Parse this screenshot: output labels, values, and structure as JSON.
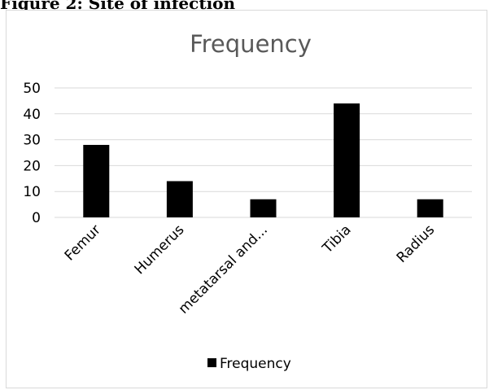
{
  "figure_caption": "Figure 2: Site of infection",
  "chart_data": {
    "type": "bar",
    "title": "Frequency",
    "categories": [
      "Femur",
      "Humerus",
      "metatarsal and...",
      "Tibia",
      "Radius"
    ],
    "series": [
      {
        "name": "Frequency",
        "values": [
          28,
          14,
          7,
          44,
          7
        ]
      }
    ],
    "ylim": [
      0,
      50
    ],
    "yticks": [
      0,
      10,
      20,
      30,
      40,
      50
    ],
    "xlabel": "",
    "ylabel": "",
    "grid": true,
    "legend_position": "bottom",
    "colors": {
      "bar": "#000000",
      "grid": "#d9d9d9",
      "title": "#595959"
    }
  }
}
